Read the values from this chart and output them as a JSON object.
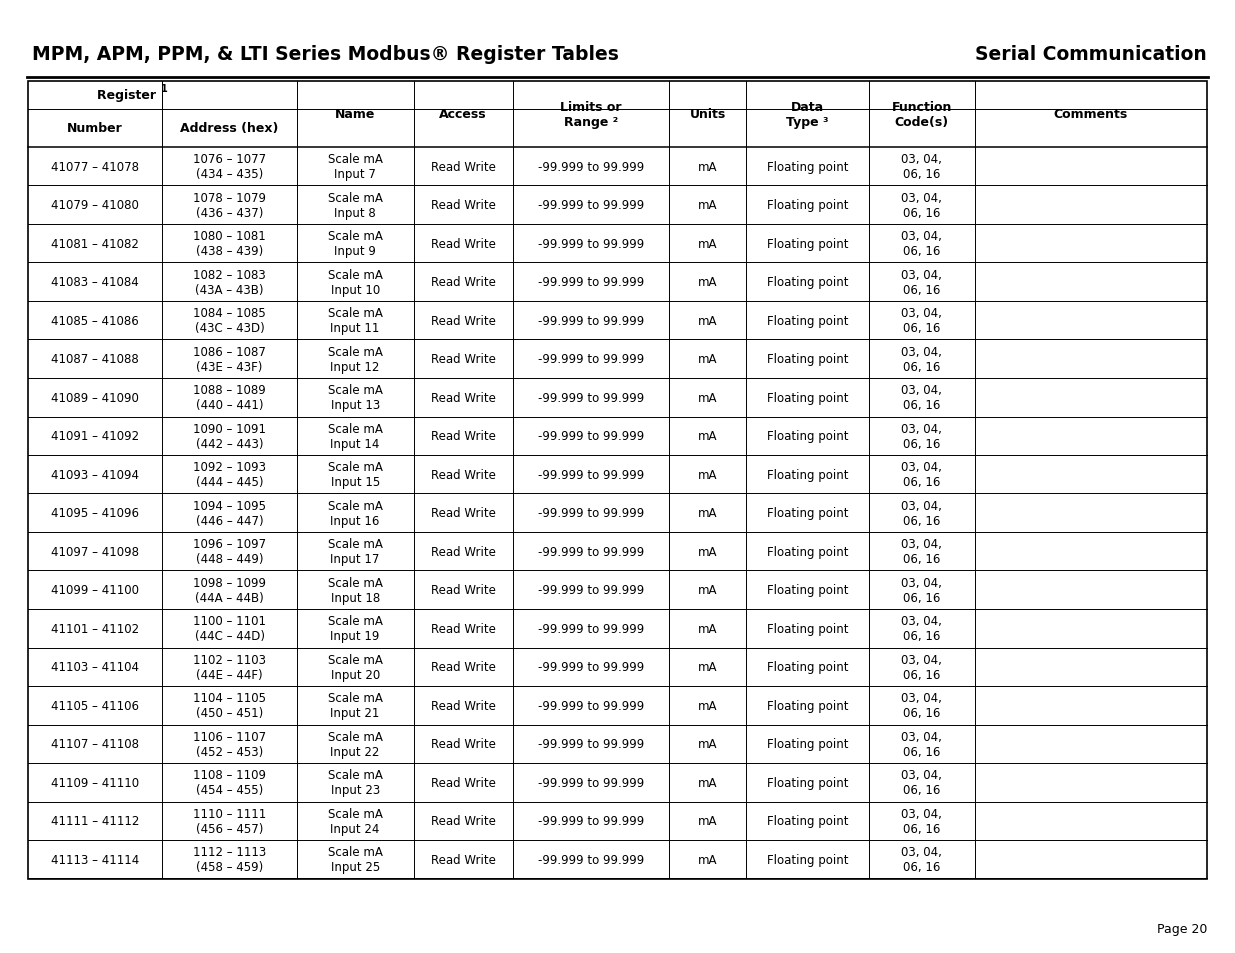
{
  "title_left": "MPM, APM, PPM, & LTI Series Modbus® Register Tables",
  "title_right": "Serial Communication",
  "page_num": "Page 20",
  "rows": [
    [
      "41077 – 41078",
      "1076 – 1077\n(434 – 435)",
      "Scale mA\nInput 7",
      "Read Write",
      "-99.999 to 99.999",
      "mA",
      "Floating point",
      "03, 04,\n06, 16",
      ""
    ],
    [
      "41079 – 41080",
      "1078 – 1079\n(436 – 437)",
      "Scale mA\nInput 8",
      "Read Write",
      "-99.999 to 99.999",
      "mA",
      "Floating point",
      "03, 04,\n06, 16",
      ""
    ],
    [
      "41081 – 41082",
      "1080 – 1081\n(438 – 439)",
      "Scale mA\nInput 9",
      "Read Write",
      "-99.999 to 99.999",
      "mA",
      "Floating point",
      "03, 04,\n06, 16",
      ""
    ],
    [
      "41083 – 41084",
      "1082 – 1083\n(43A – 43B)",
      "Scale mA\nInput 10",
      "Read Write",
      "-99.999 to 99.999",
      "mA",
      "Floating point",
      "03, 04,\n06, 16",
      ""
    ],
    [
      "41085 – 41086",
      "1084 – 1085\n(43C – 43D)",
      "Scale mA\nInput 11",
      "Read Write",
      "-99.999 to 99.999",
      "mA",
      "Floating point",
      "03, 04,\n06, 16",
      ""
    ],
    [
      "41087 – 41088",
      "1086 – 1087\n(43E – 43F)",
      "Scale mA\nInput 12",
      "Read Write",
      "-99.999 to 99.999",
      "mA",
      "Floating point",
      "03, 04,\n06, 16",
      ""
    ],
    [
      "41089 – 41090",
      "1088 – 1089\n(440 – 441)",
      "Scale mA\nInput 13",
      "Read Write",
      "-99.999 to 99.999",
      "mA",
      "Floating point",
      "03, 04,\n06, 16",
      ""
    ],
    [
      "41091 – 41092",
      "1090 – 1091\n(442 – 443)",
      "Scale mA\nInput 14",
      "Read Write",
      "-99.999 to 99.999",
      "mA",
      "Floating point",
      "03, 04,\n06, 16",
      ""
    ],
    [
      "41093 – 41094",
      "1092 – 1093\n(444 – 445)",
      "Scale mA\nInput 15",
      "Read Write",
      "-99.999 to 99.999",
      "mA",
      "Floating point",
      "03, 04,\n06, 16",
      ""
    ],
    [
      "41095 – 41096",
      "1094 – 1095\n(446 – 447)",
      "Scale mA\nInput 16",
      "Read Write",
      "-99.999 to 99.999",
      "mA",
      "Floating point",
      "03, 04,\n06, 16",
      ""
    ],
    [
      "41097 – 41098",
      "1096 – 1097\n(448 – 449)",
      "Scale mA\nInput 17",
      "Read Write",
      "-99.999 to 99.999",
      "mA",
      "Floating point",
      "03, 04,\n06, 16",
      ""
    ],
    [
      "41099 – 41100",
      "1098 – 1099\n(44A – 44B)",
      "Scale mA\nInput 18",
      "Read Write",
      "-99.999 to 99.999",
      "mA",
      "Floating point",
      "03, 04,\n06, 16",
      ""
    ],
    [
      "41101 – 41102",
      "1100 – 1101\n(44C – 44D)",
      "Scale mA\nInput 19",
      "Read Write",
      "-99.999 to 99.999",
      "mA",
      "Floating point",
      "03, 04,\n06, 16",
      ""
    ],
    [
      "41103 – 41104",
      "1102 – 1103\n(44E – 44F)",
      "Scale mA\nInput 20",
      "Read Write",
      "-99.999 to 99.999",
      "mA",
      "Floating point",
      "03, 04,\n06, 16",
      ""
    ],
    [
      "41105 – 41106",
      "1104 – 1105\n(450 – 451)",
      "Scale mA\nInput 21",
      "Read Write",
      "-99.999 to 99.999",
      "mA",
      "Floating point",
      "03, 04,\n06, 16",
      ""
    ],
    [
      "41107 – 41108",
      "1106 – 1107\n(452 – 453)",
      "Scale mA\nInput 22",
      "Read Write",
      "-99.999 to 99.999",
      "mA",
      "Floating point",
      "03, 04,\n06, 16",
      ""
    ],
    [
      "41109 – 41110",
      "1108 – 1109\n(454 – 455)",
      "Scale mA\nInput 23",
      "Read Write",
      "-99.999 to 99.999",
      "mA",
      "Floating point",
      "03, 04,\n06, 16",
      ""
    ],
    [
      "41111 – 41112",
      "1110 – 1111\n(456 – 457)",
      "Scale mA\nInput 24",
      "Read Write",
      "-99.999 to 99.999",
      "mA",
      "Floating point",
      "03, 04,\n06, 16",
      ""
    ],
    [
      "41113 – 41114",
      "1112 – 1113\n(458 – 459)",
      "Scale mA\nInput 25",
      "Read Write",
      "-99.999 to 99.999",
      "mA",
      "Floating point",
      "03, 04,\n06, 16",
      ""
    ]
  ],
  "bg_color": "#ffffff",
  "font_size_title": 13.5,
  "font_size_header": 9,
  "font_size_data": 8.5
}
